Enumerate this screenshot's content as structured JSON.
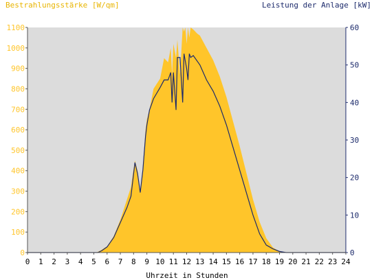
{
  "chart_data": {
    "type": "area",
    "left_axis_label": "Bestrahlungsstärke [W/qm]",
    "right_axis_label": "Leistung der Anlage [kW]",
    "xlabel": "Uhrzeit in Stunden",
    "xlim": [
      0,
      24
    ],
    "x_ticks": [
      "0",
      "1",
      "2",
      "3",
      "4",
      "5",
      "6",
      "7",
      "8",
      "9",
      "10",
      "11",
      "12",
      "13",
      "14",
      "15",
      "16",
      "17",
      "18",
      "19",
      "20",
      "21",
      "22",
      "23",
      "24"
    ],
    "y_left_lim": [
      0,
      1100
    ],
    "y_left_ticks": [
      "0",
      "100",
      "200",
      "300",
      "400",
      "500",
      "600",
      "700",
      "800",
      "900",
      "1000",
      "1100"
    ],
    "y_right_lim": [
      0,
      60
    ],
    "y_right_ticks": [
      "0",
      "10",
      "20",
      "30",
      "40",
      "50",
      "60"
    ],
    "colors": {
      "irradiance": "#ffc52a",
      "power": "#1c2a6b",
      "plot_bg": "#dcdcdc"
    },
    "series": [
      {
        "name": "Bestrahlungsstärke",
        "axis": "left",
        "x": [
          0,
          5.2,
          5.5,
          6.0,
          6.5,
          7.0,
          7.5,
          7.8,
          8.0,
          8.1,
          8.3,
          8.5,
          8.7,
          8.9,
          9.0,
          9.2,
          9.5,
          10.0,
          10.3,
          10.6,
          10.8,
          10.9,
          11.0,
          11.2,
          11.3,
          11.5,
          11.7,
          11.8,
          11.9,
          12.0,
          12.1,
          12.2,
          12.3,
          12.5,
          12.8,
          13.0,
          13.5,
          14.0,
          14.5,
          15.0,
          15.5,
          16.0,
          16.5,
          17.0,
          17.5,
          18.0,
          18.5,
          19.0,
          19.5,
          19.8,
          20.0,
          24
        ],
        "y": [
          0,
          0,
          10,
          30,
          80,
          160,
          260,
          320,
          410,
          450,
          400,
          300,
          420,
          600,
          650,
          700,
          800,
          850,
          950,
          930,
          1000,
          870,
          1020,
          950,
          1040,
          870,
          1100,
          1080,
          1100,
          1020,
          1100,
          1050,
          1100,
          1090,
          1070,
          1060,
          1000,
          940,
          860,
          760,
          640,
          520,
          390,
          260,
          150,
          70,
          25,
          5,
          0,
          0,
          0,
          0
        ]
      },
      {
        "name": "Leistung",
        "axis": "right",
        "x": [
          0,
          5.3,
          5.6,
          6.0,
          6.5,
          7.0,
          7.5,
          7.8,
          8.0,
          8.1,
          8.3,
          8.5,
          8.7,
          8.9,
          9.0,
          9.2,
          9.5,
          10.0,
          10.3,
          10.6,
          10.8,
          10.9,
          11.0,
          11.2,
          11.3,
          11.5,
          11.7,
          11.8,
          11.9,
          12.0,
          12.1,
          12.2,
          12.3,
          12.5,
          12.8,
          13.0,
          13.5,
          14.0,
          14.5,
          15.0,
          15.5,
          16.0,
          16.5,
          17.0,
          17.5,
          18.0,
          18.5,
          19.0,
          19.5,
          19.8,
          20.0,
          24
        ],
        "y": [
          0,
          0,
          0.5,
          1.5,
          4,
          8,
          12,
          15,
          21,
          24,
          21,
          16,
          22,
          31,
          34,
          38,
          41,
          44,
          46,
          46,
          48,
          40,
          48,
          38,
          52,
          52,
          40,
          53,
          51,
          49,
          46,
          53,
          52,
          52.5,
          51,
          50,
          46,
          43,
          39,
          34,
          28,
          22,
          16,
          10,
          5,
          2,
          1,
          0.3,
          0,
          0,
          0,
          0
        ]
      }
    ]
  }
}
